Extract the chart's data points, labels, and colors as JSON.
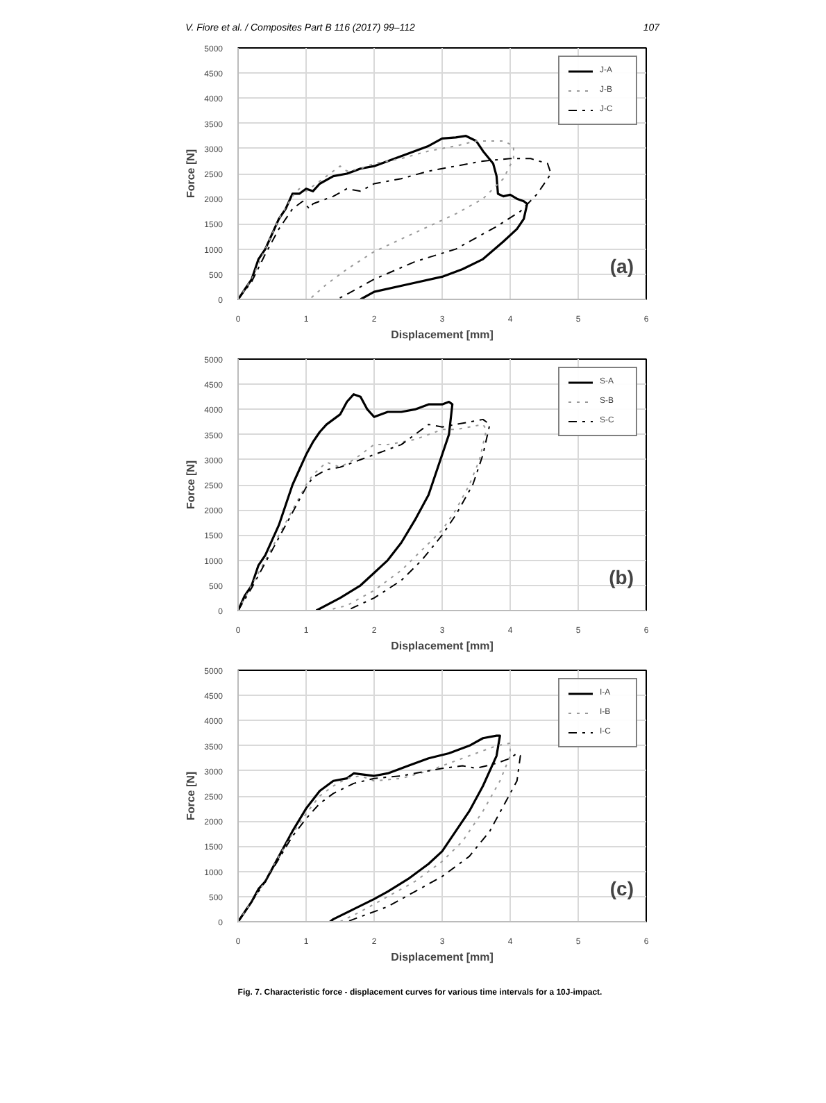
{
  "chart_data": [
    {
      "type": "line",
      "xlabel": "Displacement [mm]",
      "ylabel": "Force [N]",
      "xlim": [
        0,
        6
      ],
      "ylim": [
        0,
        5000
      ],
      "xticks": [
        0,
        1,
        2,
        3,
        4,
        5,
        6
      ],
      "yticks": [
        0,
        500,
        1000,
        1500,
        2000,
        2500,
        3000,
        3500,
        4000,
        4500,
        5000
      ],
      "grid": true,
      "legend": "top right",
      "annotations": [
        "V. Fiore et al. / Composites Part B 116 (2017) 99–112",
        "107",
        "(a)"
      ],
      "series": [
        {
          "name": "J-A",
          "color": "#000000",
          "line_style": "solid",
          "x": [
            0,
            0.1,
            0.2,
            0.3,
            0.4,
            0.5,
            0.6,
            0.7,
            0.8,
            0.9,
            1.0,
            1.1,
            1.2,
            1.4,
            1.6,
            1.8,
            2.0,
            2.2,
            2.4,
            2.6,
            2.8,
            3.0,
            3.2,
            3.35,
            3.5,
            3.6,
            3.75,
            3.8,
            3.82,
            3.9,
            4.0,
            4.1,
            4.2,
            4.25,
            4.2,
            4.1,
            3.9,
            3.6,
            3.3,
            3.0,
            2.5,
            2.0,
            1.8
          ],
          "values": [
            0,
            200,
            400,
            800,
            1000,
            1300,
            1600,
            1800,
            2100,
            2100,
            2200,
            2150,
            2300,
            2450,
            2500,
            2600,
            2650,
            2750,
            2850,
            2950,
            3050,
            3200,
            3220,
            3250,
            3150,
            2950,
            2700,
            2450,
            2100,
            2050,
            2080,
            2000,
            1950,
            1900,
            1600,
            1400,
            1150,
            800,
            600,
            450,
            300,
            150,
            0
          ]
        },
        {
          "name": "J-B",
          "color": "#999999",
          "line_style": "dotted",
          "x": [
            0,
            0.2,
            0.4,
            0.6,
            0.8,
            0.9,
            1.0,
            1.2,
            1.5,
            1.6,
            1.8,
            2.0,
            2.4,
            2.8,
            3.2,
            3.5,
            3.7,
            3.9,
            4.05,
            4.05,
            3.9,
            3.6,
            3.2,
            2.8,
            2.4,
            2.0,
            1.6,
            1.3,
            1.05
          ],
          "values": [
            0,
            400,
            1000,
            1600,
            2050,
            2200,
            2150,
            2350,
            2650,
            2550,
            2600,
            2700,
            2800,
            2950,
            3050,
            3150,
            3150,
            3150,
            3050,
            2800,
            2400,
            2000,
            1700,
            1450,
            1200,
            950,
            600,
            300,
            0
          ]
        },
        {
          "name": "J-C",
          "color": "#000000",
          "line_style": "dashed",
          "x": [
            0,
            0.2,
            0.4,
            0.6,
            0.8,
            0.95,
            1.05,
            1.1,
            1.4,
            1.6,
            1.8,
            2.0,
            2.4,
            2.8,
            3.2,
            3.6,
            4.0,
            4.3,
            4.55,
            4.6,
            4.4,
            4.15,
            3.8,
            3.2,
            2.6,
            2.0,
            1.6,
            1.45
          ],
          "values": [
            0,
            350,
            900,
            1400,
            1800,
            1950,
            1800,
            1900,
            2050,
            2200,
            2150,
            2300,
            2400,
            2550,
            2650,
            2750,
            2800,
            2800,
            2700,
            2500,
            2100,
            1750,
            1450,
            1000,
            750,
            400,
            100,
            0
          ]
        }
      ]
    },
    {
      "type": "line",
      "xlabel": "Displacement [mm]",
      "ylabel": "Force [N]",
      "xlim": [
        0,
        6
      ],
      "ylim": [
        0,
        5000
      ],
      "xticks": [
        0,
        1,
        2,
        3,
        4,
        5,
        6
      ],
      "yticks": [
        0,
        500,
        1000,
        1500,
        2000,
        2500,
        3000,
        3500,
        4000,
        4500,
        5000
      ],
      "grid": true,
      "legend": "top right",
      "annotations": [
        "(b)"
      ],
      "series": [
        {
          "name": "S-A",
          "color": "#000000",
          "line_style": "solid",
          "x": [
            0,
            0.1,
            0.2,
            0.3,
            0.4,
            0.5,
            0.6,
            0.7,
            0.8,
            0.9,
            1.0,
            1.1,
            1.2,
            1.3,
            1.4,
            1.5,
            1.6,
            1.7,
            1.8,
            1.9,
            2.0,
            2.2,
            2.4,
            2.6,
            2.8,
            3.0,
            3.1,
            3.15,
            3.1,
            2.95,
            2.8,
            2.6,
            2.4,
            2.2,
            2.0,
            1.8,
            1.5,
            1.15
          ],
          "values": [
            0,
            300,
            500,
            900,
            1100,
            1400,
            1700,
            2100,
            2500,
            2800,
            3100,
            3350,
            3550,
            3700,
            3800,
            3900,
            4150,
            4300,
            4250,
            4000,
            3850,
            3950,
            3950,
            4000,
            4100,
            4100,
            4150,
            4100,
            3500,
            2900,
            2300,
            1800,
            1350,
            1000,
            750,
            500,
            250,
            0
          ]
        },
        {
          "name": "S-B",
          "color": "#999999",
          "line_style": "dotted",
          "x": [
            0,
            0.2,
            0.4,
            0.6,
            0.8,
            1.0,
            1.1,
            1.3,
            1.5,
            1.7,
            1.9,
            2.0,
            2.2,
            2.4,
            2.6,
            2.8,
            3.0,
            3.2,
            3.4,
            3.6,
            3.65,
            3.55,
            3.4,
            3.2,
            3.0,
            2.7,
            2.4,
            2.0,
            1.6,
            1.3
          ],
          "values": [
            0,
            500,
            1000,
            1500,
            2000,
            2500,
            2700,
            2950,
            2850,
            3000,
            3200,
            3300,
            3300,
            3350,
            3400,
            3500,
            3600,
            3600,
            3650,
            3700,
            3600,
            3000,
            2500,
            2000,
            1600,
            1200,
            800,
            400,
            100,
            0
          ]
        },
        {
          "name": "S-C",
          "color": "#000000",
          "line_style": "dashed",
          "x": [
            0,
            0.2,
            0.4,
            0.6,
            0.8,
            1.0,
            1.1,
            1.3,
            1.5,
            1.8,
            2.0,
            2.4,
            2.8,
            3.0,
            3.2,
            3.4,
            3.6,
            3.7,
            3.6,
            3.45,
            3.2,
            3.0,
            2.7,
            2.4,
            2.0,
            1.6
          ],
          "values": [
            0,
            450,
            950,
            1450,
            1950,
            2450,
            2650,
            2800,
            2850,
            3000,
            3100,
            3300,
            3700,
            3650,
            3700,
            3750,
            3800,
            3700,
            3100,
            2500,
            1900,
            1500,
            1000,
            600,
            250,
            0
          ]
        }
      ]
    },
    {
      "type": "line",
      "xlabel": "Displacement [mm]",
      "ylabel": "Force [N]",
      "xlim": [
        0,
        6
      ],
      "ylim": [
        0,
        5000
      ],
      "xticks": [
        0,
        1,
        2,
        3,
        4,
        5,
        6
      ],
      "yticks": [
        0,
        500,
        1000,
        1500,
        2000,
        2500,
        3000,
        3500,
        4000,
        4500,
        5000
      ],
      "grid": true,
      "legend": "top right",
      "annotations": [
        "Fig. 7. Characteristic force - displacement curves for various time intervals for a 10J-impact.",
        "(c)"
      ],
      "series": [
        {
          "name": "I-A",
          "color": "#000000",
          "line_style": "solid",
          "x": [
            0,
            0.1,
            0.2,
            0.3,
            0.4,
            0.6,
            0.8,
            1.0,
            1.2,
            1.4,
            1.6,
            1.7,
            2.0,
            2.2,
            2.5,
            2.8,
            3.1,
            3.4,
            3.6,
            3.8,
            3.85,
            3.8,
            3.6,
            3.4,
            3.2,
            3.0,
            2.8,
            2.5,
            2.2,
            2.0,
            1.7,
            1.4,
            1.35
          ],
          "values": [
            0,
            200,
            400,
            650,
            800,
            1300,
            1800,
            2250,
            2600,
            2800,
            2850,
            2950,
            2900,
            2950,
            3100,
            3250,
            3350,
            3500,
            3650,
            3700,
            3700,
            3300,
            2700,
            2200,
            1800,
            1400,
            1150,
            850,
            600,
            450,
            250,
            50,
            0
          ]
        },
        {
          "name": "I-B",
          "color": "#999999",
          "line_style": "dotted",
          "x": [
            0,
            0.2,
            0.4,
            0.6,
            0.8,
            1.0,
            1.2,
            1.4,
            1.6,
            1.8,
            2.0,
            2.4,
            2.8,
            3.2,
            3.5,
            3.8,
            4.0,
            4.0,
            3.85,
            3.6,
            3.3,
            3.0,
            2.6,
            2.2,
            1.8,
            1.5
          ],
          "values": [
            0,
            400,
            800,
            1300,
            1750,
            2150,
            2500,
            2700,
            2850,
            2900,
            2800,
            2850,
            3000,
            3200,
            3350,
            3500,
            3550,
            3300,
            2800,
            2200,
            1600,
            1200,
            800,
            500,
            200,
            0
          ]
        },
        {
          "name": "I-C",
          "color": "#000000",
          "line_style": "dashed",
          "x": [
            0,
            0.2,
            0.4,
            0.6,
            0.8,
            1.0,
            1.2,
            1.4,
            1.7,
            2.0,
            2.4,
            2.8,
            3.0,
            3.3,
            3.5,
            3.8,
            4.0,
            4.1,
            4.15,
            4.1,
            3.9,
            3.7,
            3.4,
            3.0,
            2.6,
            2.2,
            1.8,
            1.6
          ],
          "values": [
            0,
            400,
            800,
            1250,
            1700,
            2050,
            2350,
            2550,
            2750,
            2850,
            2900,
            3000,
            3050,
            3100,
            3050,
            3150,
            3250,
            3350,
            3300,
            2800,
            2300,
            1800,
            1300,
            900,
            600,
            300,
            100,
            0
          ]
        }
      ]
    }
  ]
}
